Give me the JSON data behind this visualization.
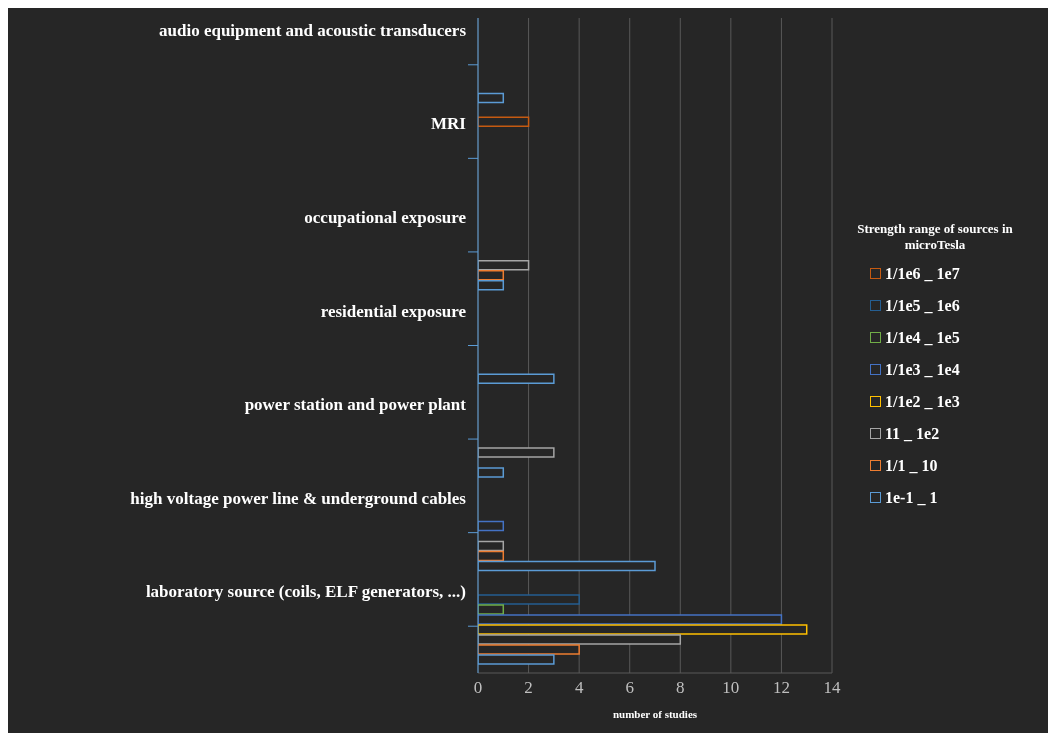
{
  "chart_data": {
    "type": "bar",
    "orientation": "horizontal",
    "xlabel": "number of studies",
    "legend_title": "Strength range of sources in microTesla",
    "categories": [
      "audio equipment and acoustic transducers",
      "MRI",
      "occupational exposure",
      "residential exposure",
      "power station and power plant",
      "high voltage power line & underground cables",
      "laboratory source (coils, ELF generators, ...)"
    ],
    "series": [
      {
        "name": "1/1e6 _ 1e7",
        "color": "#c55a11",
        "values": [
          null,
          2,
          null,
          null,
          null,
          null,
          null
        ]
      },
      {
        "name": "1/1e5 _ 1e6",
        "color": "#255e91",
        "values": [
          null,
          null,
          null,
          null,
          null,
          null,
          4
        ]
      },
      {
        "name": "1/1e4 _ 1e5",
        "color": "#70ad47",
        "values": [
          null,
          null,
          null,
          null,
          null,
          null,
          1
        ]
      },
      {
        "name": "1/1e3 _ 1e4",
        "color": "#4472c4",
        "values": [
          null,
          null,
          null,
          null,
          null,
          1,
          12
        ]
      },
      {
        "name": "1/1e2 _ 1e3",
        "color": "#ffc000",
        "values": [
          null,
          null,
          null,
          null,
          null,
          null,
          13
        ]
      },
      {
        "name": "11 _ 1e2",
        "color": "#a5a5a5",
        "values": [
          null,
          null,
          2,
          null,
          3,
          1,
          8
        ]
      },
      {
        "name": "1/1 _ 10",
        "color": "#ed7d31",
        "values": [
          null,
          null,
          1,
          null,
          null,
          1,
          4
        ]
      },
      {
        "name": "1e-1 _ 1",
        "color": "#5b9bd5",
        "values": [
          1,
          null,
          1,
          3,
          1,
          7,
          3
        ]
      }
    ],
    "xlim": [
      0,
      14
    ],
    "xticks": [
      0,
      2,
      4,
      6,
      8,
      10,
      12,
      14
    ],
    "grid": "x",
    "legend": "right"
  }
}
